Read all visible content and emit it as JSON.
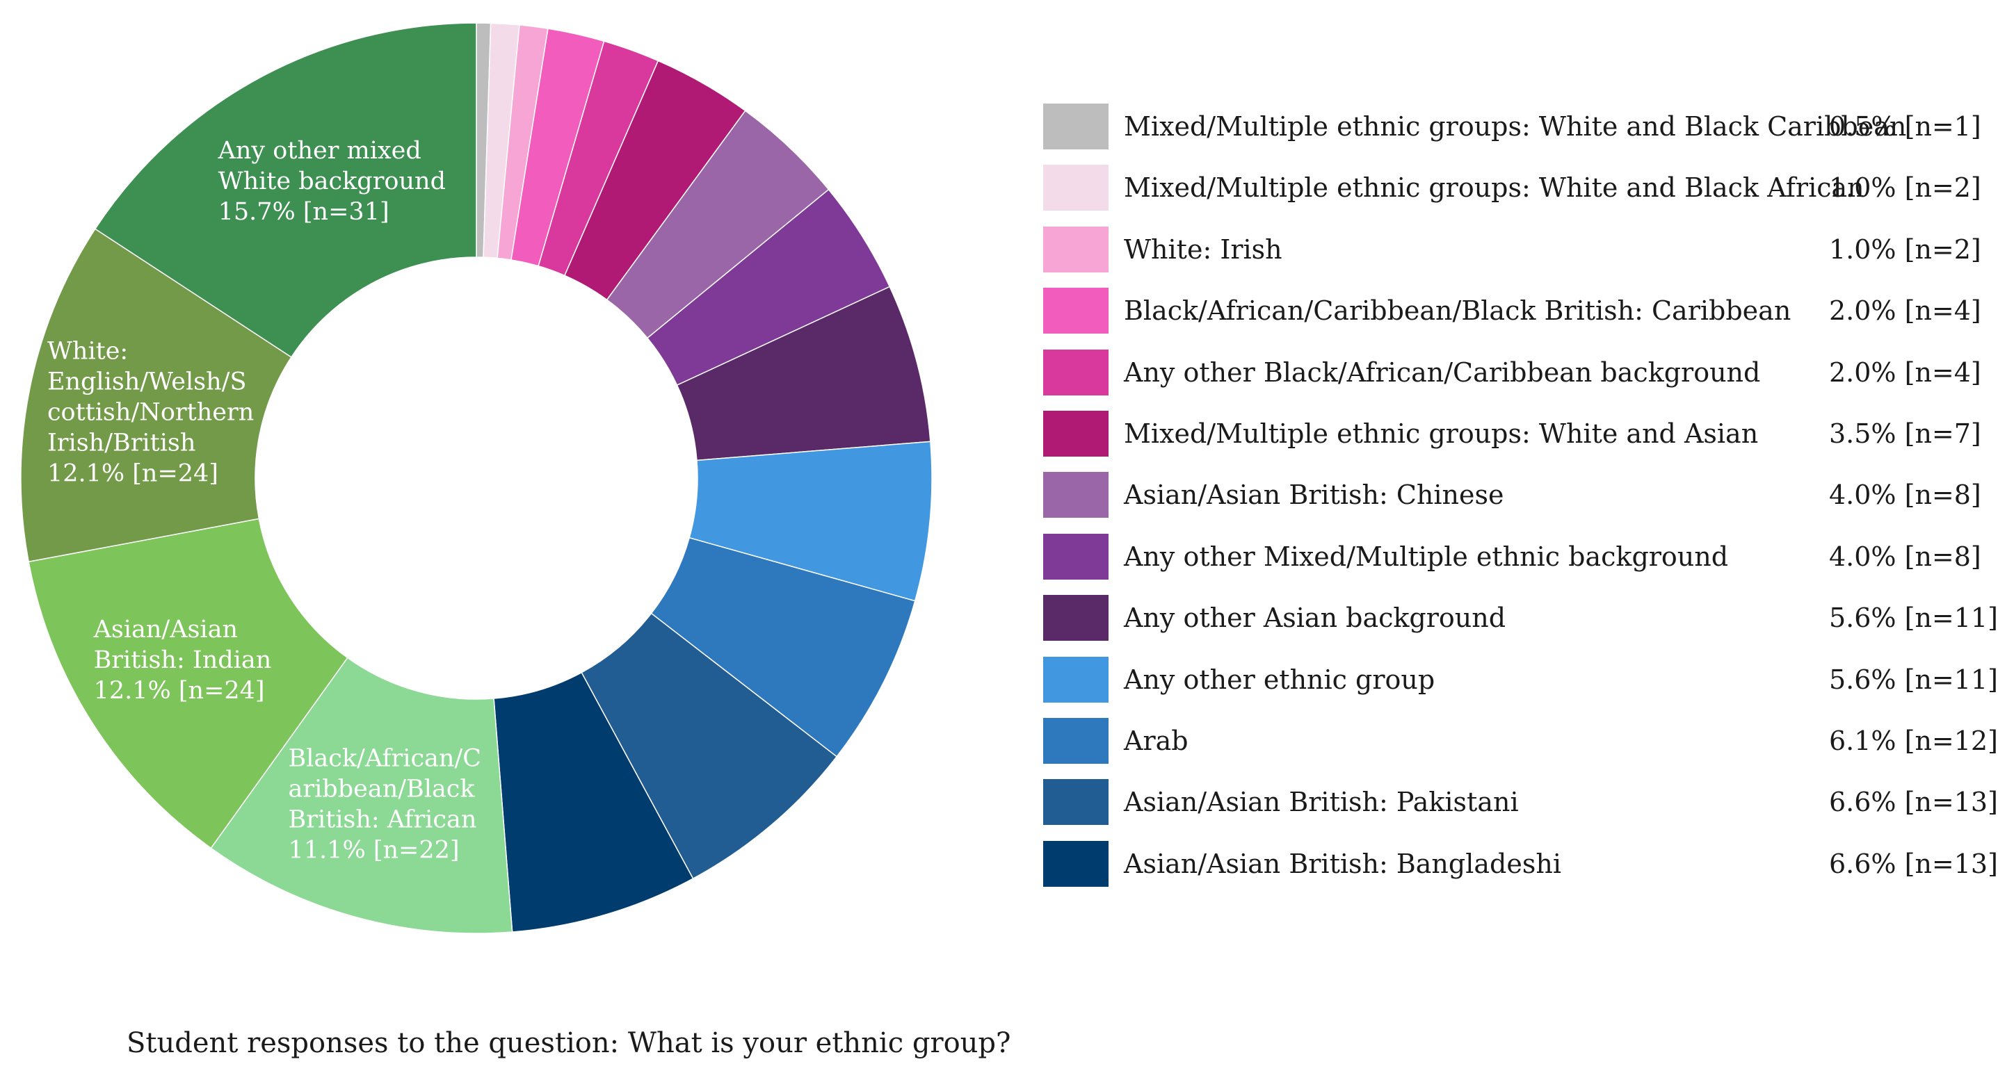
{
  "chart_data": {
    "type": "pie",
    "donut": true,
    "caption": "Student responses to the question: What is your ethnic group?",
    "slices": [
      {
        "label": "Mixed/Multiple ethnic groups: White and Black Caribbean",
        "value": 0.5,
        "n": 1,
        "value_text": "0.5% [n=1]",
        "color": "#bdbdbd",
        "in_legend": true
      },
      {
        "label": "Mixed/Multiple ethnic groups: White and Black African",
        "value": 1.0,
        "n": 2,
        "value_text": "1.0% [n=2]",
        "color": "#f3dbe9",
        "in_legend": true
      },
      {
        "label": "White: Irish",
        "value": 1.0,
        "n": 2,
        "value_text": "1.0% [n=2]",
        "color": "#f7a5d5",
        "in_legend": true
      },
      {
        "label": "Black/African/Caribbean/Black British: Caribbean",
        "value": 2.0,
        "n": 4,
        "value_text": "2.0% [n=4]",
        "color": "#f25cbc",
        "in_legend": true
      },
      {
        "label": "Any other Black/African/Caribbean background",
        "value": 2.0,
        "n": 4,
        "value_text": "2.0% [n=4]",
        "color": "#d9399d",
        "in_legend": true
      },
      {
        "label": "Mixed/Multiple ethnic groups: White and Asian",
        "value": 3.5,
        "n": 7,
        "value_text": "3.5% [n=7]",
        "color": "#b01a75",
        "in_legend": true
      },
      {
        "label": "Asian/Asian British: Chinese",
        "value": 4.0,
        "n": 8,
        "value_text": "4.0% [n=8]",
        "color": "#9a66a8",
        "in_legend": true
      },
      {
        "label": "Any other Mixed/Multiple ethnic background",
        "value": 4.0,
        "n": 8,
        "value_text": "4.0% [n=8]",
        "color": "#7e3a96",
        "in_legend": true
      },
      {
        "label": "Any other Asian background",
        "value": 5.6,
        "n": 11,
        "value_text": "5.6% [n=11]",
        "color": "#5a2a68",
        "in_legend": true
      },
      {
        "label": "Any other ethnic group",
        "value": 5.6,
        "n": 11,
        "value_text": "5.6% [n=11]",
        "color": "#4198e0",
        "in_legend": true
      },
      {
        "label": "Arab",
        "value": 6.1,
        "n": 12,
        "value_text": "6.1% [n=12]",
        "color": "#2e78bd",
        "in_legend": true
      },
      {
        "label": "Asian/Asian British: Pakistani",
        "value": 6.6,
        "n": 13,
        "value_text": "6.6% [n=13]",
        "color": "#215c93",
        "in_legend": true
      },
      {
        "label": "Asian/Asian British: Bangladeshi",
        "value": 6.6,
        "n": 13,
        "value_text": "6.6% [n=13]",
        "color": "#003c6e",
        "in_legend": true
      },
      {
        "label": "Black/African/Caribbean/Black British: African",
        "value": 11.1,
        "n": 22,
        "value_text": "11.1% [n=22]",
        "color": "#8cd895",
        "in_legend": false,
        "label_lines": [
          "Black/African/C",
          "aribbean/Black",
          "British: African",
          "11.1% [n=22]"
        ]
      },
      {
        "label": "Asian/Asian British: Indian",
        "value": 12.1,
        "n": 24,
        "value_text": "12.1% [n=24]",
        "color": "#7dc45a",
        "in_legend": false,
        "label_lines": [
          "Asian/Asian",
          "British: Indian",
          "12.1% [n=24]"
        ]
      },
      {
        "label": "White: English/Welsh/Scottish/Northern Irish/British",
        "value": 12.1,
        "n": 24,
        "value_text": "12.1% [n=24]",
        "color": "#729a49",
        "in_legend": false,
        "label_lines": [
          "White:",
          "English/Welsh/S",
          "cottish/Northern",
          "Irish/British",
          "12.1% [n=24]"
        ]
      },
      {
        "label": "Any other mixed White background",
        "value": 15.7,
        "n": 31,
        "value_text": "15.7% [n=31]",
        "color": "#3d8f52",
        "in_legend": false,
        "label_lines": [
          "Any other mixed",
          "White background",
          "15.7% [n=31]"
        ]
      }
    ]
  }
}
